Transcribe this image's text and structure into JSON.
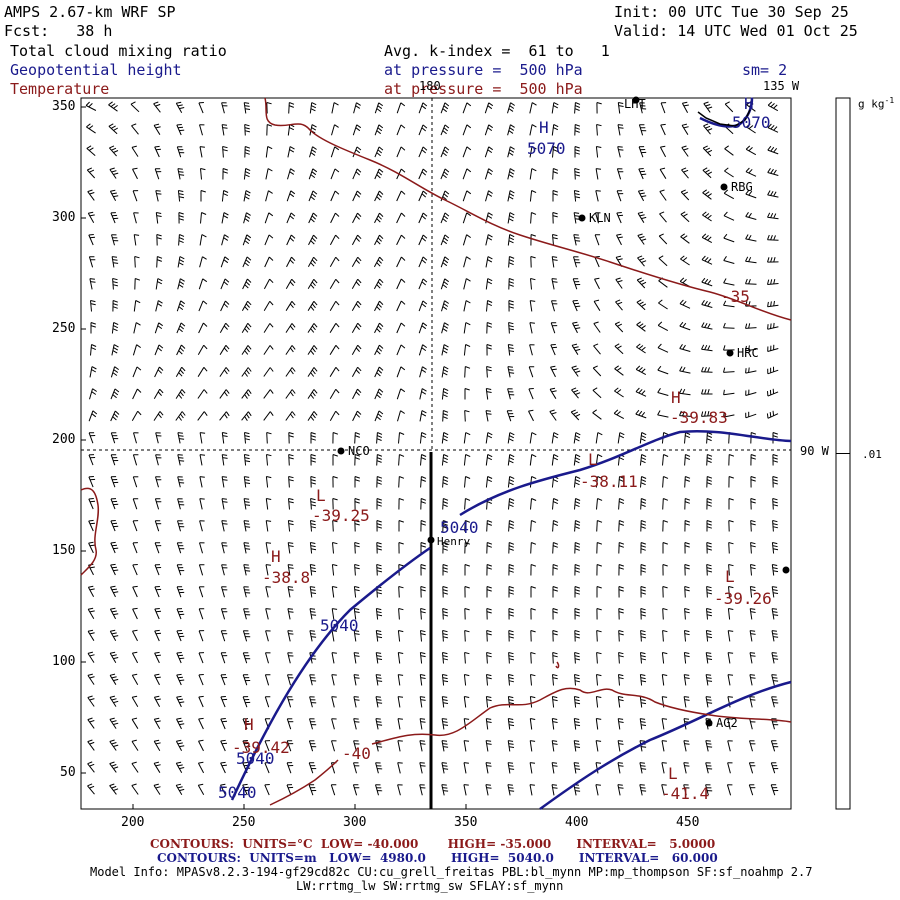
{
  "header": {
    "model_title": "AMPS 2.67-km WRF SP",
    "init_label": "Init: 00 UTC Tue 30 Sep 25",
    "fcst_label": "Fcst:   38 h",
    "valid_label": "Valid: 14 UTC Wed 01 Oct 25",
    "field1": "Total cloud mixing ratio",
    "field1_avg": "Avg. k-index =  61 to   1",
    "field2": "Geopotential height",
    "field2_level": "at pressure =  500 hPa",
    "field2_smooth": "sm= 2",
    "field3": "Temperature",
    "field3_level": "at pressure =  500 hPa"
  },
  "map": {
    "x_ticks": [
      "200",
      "250",
      "300",
      "350",
      "400",
      "450"
    ],
    "y_ticks": [
      "350",
      "300",
      "250",
      "200",
      "150",
      "100",
      "50"
    ],
    "meridian_180": "180",
    "meridian_135": "135 W",
    "meridian_90": "90 W",
    "stations": [
      {
        "id": "LHT",
        "label": "LHT"
      },
      {
        "id": "RBG",
        "label": "RBG"
      },
      {
        "id": "KLN",
        "label": "KLN"
      },
      {
        "id": "HRC",
        "label": "HRC"
      },
      {
        "id": "NCO",
        "label": "NCO"
      },
      {
        "id": "Henry",
        "label": "Henry"
      },
      {
        "id": "AG2",
        "label": "AG2"
      }
    ],
    "height_labels": [
      "5070",
      "5070",
      "5040",
      "5040",
      "5040",
      "5040"
    ],
    "temperature_labels": [
      "-35",
      "-39.83",
      "-38.11",
      "-39.25",
      "-38.8",
      "-39.26",
      "-39.42",
      "-40",
      "-41.4"
    ],
    "extrema_symbols": [
      "H",
      "H",
      "H",
      "L",
      "L",
      "H",
      "L",
      "H",
      "L"
    ]
  },
  "colorbar": {
    "units": "g kg",
    "units_exp": "-1",
    "tick": ".01",
    "value_fraction": 0.5
  },
  "footer": {
    "temp_contours": "CONTOURS:  UNITS=°C  LOW= -40.000       HIGH= -35.000      INTERVAL=   5.0000",
    "height_contours": "CONTOURS:  UNITS=m   LOW=  4980.0      HIGH=  5040.0      INTERVAL=   60.000",
    "model_info": "Model Info: MPASv8.2.3-194-gf29cd82c CU:cu_grell_freitas PBL:bl_mynn MP:mp_thompson SF:sf_noahmp 2.7",
    "model_info2": "LW:rrtmg_lw SW:rrtmg_sw SFLAY:sf_mynn"
  },
  "colors": {
    "height": "#1a1a8c",
    "temperature": "#8b1a1a",
    "text": "#000000"
  }
}
